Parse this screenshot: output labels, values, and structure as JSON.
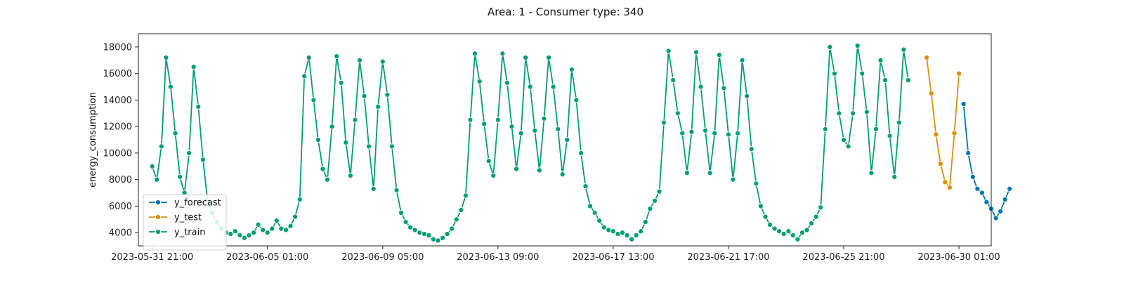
{
  "chart_data": {
    "type": "line",
    "title": "Area: 1 - Consumer type: 340",
    "xlabel": "",
    "ylabel": "energy_consumption",
    "x_start": "2023-05-31 21:00",
    "x_step_hours": 4,
    "xlim": [
      -3,
      182
    ],
    "ylim": [
      3000,
      19000
    ],
    "yticks": [
      4000,
      6000,
      8000,
      10000,
      12000,
      14000,
      16000,
      18000
    ],
    "xticks": [
      {
        "index": 0,
        "label": "2023-05-31 21:00"
      },
      {
        "index": 25,
        "label": "2023-06-05 01:00"
      },
      {
        "index": 50,
        "label": "2023-06-09 05:00"
      },
      {
        "index": 75,
        "label": "2023-06-13 09:00"
      },
      {
        "index": 100,
        "label": "2023-06-17 13:00"
      },
      {
        "index": 125,
        "label": "2023-06-21 17:00"
      },
      {
        "index": 150,
        "label": "2023-06-25 21:00"
      },
      {
        "index": 175,
        "label": "2023-06-30 01:00"
      }
    ],
    "grid": false,
    "legend_position": "lower-left",
    "series": [
      {
        "name": "y_train",
        "color": "#029e73",
        "start_index": 0,
        "values": [
          9000,
          8000,
          10500,
          17200,
          15000,
          11500,
          8200,
          7000,
          10000,
          16500,
          13500,
          9500,
          6500,
          5500,
          4800,
          4300,
          4000,
          3900,
          4100,
          3800,
          3600,
          3800,
          4000,
          4600,
          4200,
          4000,
          4300,
          4900,
          4300,
          4200,
          4500,
          5200,
          6500,
          15800,
          17200,
          14000,
          11000,
          8800,
          8000,
          12000,
          17300,
          15300,
          10800,
          8300,
          12500,
          17000,
          14300,
          10500,
          7300,
          13500,
          16900,
          14400,
          10500,
          7200,
          5500,
          4800,
          4400,
          4200,
          4000,
          3900,
          3800,
          3500,
          3400,
          3600,
          3900,
          4300,
          5000,
          5700,
          6800,
          12500,
          17500,
          15400,
          12200,
          9400,
          8300,
          12500,
          17500,
          15300,
          12000,
          8800,
          11500,
          17200,
          15000,
          11700,
          8700,
          12600,
          17200,
          15000,
          11800,
          8400,
          11000,
          16300,
          14000,
          10000,
          7500,
          6000,
          5500,
          4900,
          4400,
          4200,
          4100,
          3900,
          4000,
          3800,
          3500,
          3800,
          4100,
          4800,
          5800,
          6400,
          7100,
          12300,
          17700,
          15500,
          13000,
          11500,
          8500,
          11600,
          17600,
          15000,
          11700,
          8500,
          11500,
          17400,
          14900,
          11400,
          8000,
          11500,
          17000,
          14300,
          10300,
          7700,
          6000,
          5200,
          4600,
          4300,
          4100,
          3900,
          4100,
          3800,
          3500,
          4000,
          4200,
          4700,
          5200,
          5900,
          11800,
          18000,
          16000,
          13000,
          11000,
          10500,
          13000,
          18100,
          16000,
          13100,
          8500,
          11800,
          17000,
          15500,
          11300,
          8200,
          12300,
          17800,
          15500
        ]
      },
      {
        "name": "y_test",
        "color": "#de8f05",
        "start_index": 168,
        "values": [
          17200,
          14500,
          11400,
          9200,
          7800,
          7400,
          11500,
          16000
        ]
      },
      {
        "name": "y_forecast",
        "color": "#0173b2",
        "start_index": 176,
        "values": [
          13700,
          10000,
          8200,
          7300,
          7000,
          6300,
          5800,
          5100,
          5600,
          6500,
          7300
        ]
      }
    ]
  }
}
